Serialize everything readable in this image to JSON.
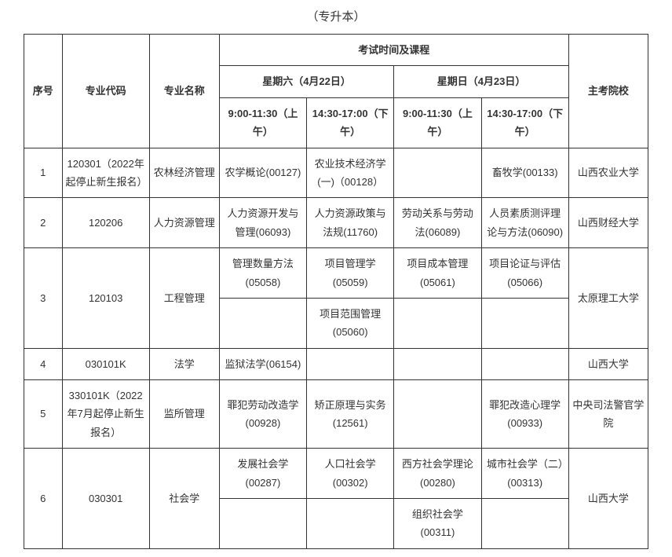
{
  "title": "（专升本）",
  "headers": {
    "seq": "序号",
    "code": "专业代码",
    "major": "专业名称",
    "exam_group": "考试时间及课程",
    "sat": "星期六（4月22日）",
    "sun": "星期日（4月23日）",
    "slot1": "9:00-11:30（上午）",
    "slot2": "14:30-17:00（下午）",
    "slot3": "9:00-11:30（上午）",
    "slot4": "14:30-17:00（下午）",
    "school": "主考院校"
  },
  "rows": [
    {
      "seq": "1",
      "code": "120301（2022年起停止新生报名）",
      "major": "农林经济管理",
      "c1": "农学概论(00127)",
      "c2": "农业技术经济学(一)（00128）",
      "c3": "",
      "c4": "畜牧学(00133)",
      "school": "山西农业大学"
    },
    {
      "seq": "2",
      "code": "120206",
      "major": "人力资源管理",
      "c1": "人力资源开发与管理(06093)",
      "c2": "人力资源政策与法规(11760)",
      "c3": "劳动关系与劳动法(06089)",
      "c4": "人员素质测评理论与方法(06090)",
      "school": "山西财经大学"
    },
    {
      "seq": "3",
      "code": "120103",
      "major": "工程管理",
      "c1a": "管理数量方法(05058)",
      "c1b": "",
      "c2a": "项目管理学(05059)",
      "c2b": "项目范围管理(05060)",
      "c3a": "项目成本管理(05061)",
      "c3b": "",
      "c4a": "项目论证与评估(05066)",
      "c4b": "",
      "school": "太原理工大学"
    },
    {
      "seq": "4",
      "code": "030101K",
      "major": "法学",
      "c1": "监狱法学(06154)",
      "c2": "",
      "c3": "",
      "c4": "",
      "school": "山西大学"
    },
    {
      "seq": "5",
      "code": "330101K（2022年7月起停止新生报名）",
      "major": "监所管理",
      "c1": "罪犯劳动改造学(00928)",
      "c2": "矫正原理与实务(12561)",
      "c3": "",
      "c4": "罪犯改造心理学(00933)",
      "school": "中央司法警官学院"
    },
    {
      "seq": "6",
      "code": "030301",
      "major": "社会学",
      "c1a": "发展社会学(00287)",
      "c1b": "",
      "c2a": "人口社会学(00302)",
      "c2b": "",
      "c3a": "西方社会学理论(00280)",
      "c3b": "组织社会学(00311)",
      "c4a": "城市社会学（二）(00313)",
      "c4b": "",
      "school": "山西大学"
    }
  ]
}
